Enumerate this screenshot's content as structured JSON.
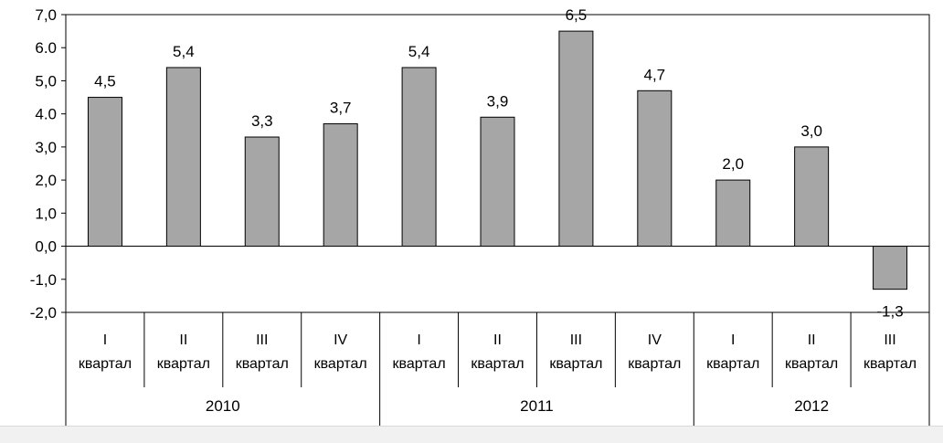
{
  "chart_data": {
    "type": "bar",
    "groups": [
      {
        "label": "2010",
        "categories": [
          {
            "num": "I",
            "word": "квартал"
          },
          {
            "num": "II",
            "word": "квартал"
          },
          {
            "num": "III",
            "word": "квартал"
          },
          {
            "num": "IV",
            "word": "квартал"
          }
        ]
      },
      {
        "label": "2011",
        "categories": [
          {
            "num": "I",
            "word": "квартал"
          },
          {
            "num": "II",
            "word": "квартал"
          },
          {
            "num": "III",
            "word": "квартал"
          },
          {
            "num": "IV",
            "word": "квартал"
          }
        ]
      },
      {
        "label": "2012",
        "categories": [
          {
            "num": "I",
            "word": "квартал"
          },
          {
            "num": "II",
            "word": "квартал"
          },
          {
            "num": "III",
            "word": "квартал"
          }
        ]
      }
    ],
    "values": [
      4.5,
      5.4,
      3.3,
      3.7,
      5.4,
      3.9,
      6.5,
      4.7,
      2.0,
      3.0,
      -1.3
    ],
    "value_labels": [
      "4,5",
      "5,4",
      "3,3",
      "3,7",
      "5,4",
      "3,9",
      "6,5",
      "4,7",
      "2,0",
      "3,0",
      "-1,3"
    ],
    "ylim": [
      -2.0,
      7.0
    ],
    "yticks": [
      7.0,
      6.0,
      5.0,
      4.0,
      3.0,
      2.0,
      1.0,
      0.0,
      -1.0,
      -2.0
    ],
    "ytick_labels": [
      "7,0",
      "6.0",
      "5,0",
      "4.0",
      "3,0",
      "2,0",
      "1,0",
      "0,0",
      "-1,0",
      "-2,0"
    ],
    "grid": false,
    "colors": {
      "bar_fill": "#a6a6a6",
      "bar_stroke": "#000000",
      "axis": "#000000"
    }
  }
}
